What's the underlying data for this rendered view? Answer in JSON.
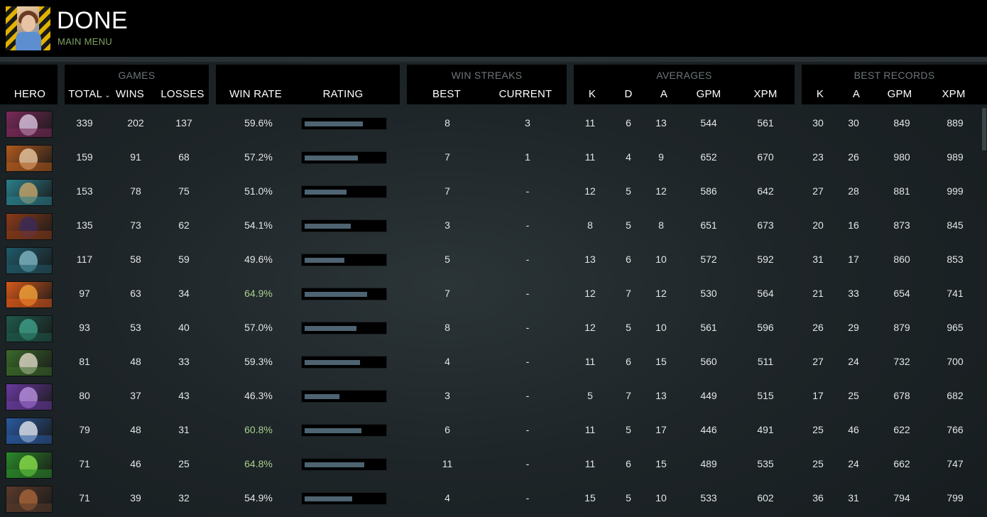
{
  "topbar": {
    "title": "DONE",
    "menu_link": "MAIN MENU"
  },
  "headers": {
    "groups": {
      "games": "GAMES",
      "win_streaks": "WIN STREAKS",
      "averages": "AVERAGES",
      "best_records": "BEST RECORDS"
    },
    "columns": {
      "hero": "HERO",
      "total": "TOTAL",
      "wins": "WINS",
      "losses": "LOSSES",
      "win_rate": "WIN RATE",
      "rating": "RATING",
      "streak_best": "BEST",
      "streak_current": "CURRENT",
      "avg_k": "K",
      "avg_d": "D",
      "avg_a": "A",
      "avg_gpm": "GPM",
      "avg_xpm": "XPM",
      "best_k": "K",
      "best_a": "A",
      "best_gpm": "GPM",
      "best_xpm": "XPM"
    },
    "sort_caret": "⌄"
  },
  "colors": {
    "accent_green": "#a8d08d",
    "menu_green": "#7fa364",
    "bar_fill": "#4e6472"
  },
  "rows": [
    {
      "portrait": [
        "#7a2a5a",
        "#d9c6e0"
      ],
      "total": "339",
      "wins": "202",
      "losses": "137",
      "win_rate": "59.6%",
      "win_rate_highlight": false,
      "rating": 0.74,
      "streak_best": "8",
      "streak_current": "3",
      "avg_k": "11",
      "avg_d": "6",
      "avg_a": "13",
      "avg_gpm": "544",
      "avg_xpm": "561",
      "best_k": "30",
      "best_a": "30",
      "best_gpm": "849",
      "best_xpm": "889"
    },
    {
      "portrait": [
        "#b25a1e",
        "#e7c7a1"
      ],
      "total": "159",
      "wins": "91",
      "losses": "68",
      "win_rate": "57.2%",
      "win_rate_highlight": false,
      "rating": 0.68,
      "streak_best": "7",
      "streak_current": "1",
      "avg_k": "11",
      "avg_d": "4",
      "avg_a": "9",
      "avg_gpm": "652",
      "avg_xpm": "670",
      "best_k": "23",
      "best_a": "26",
      "best_gpm": "980",
      "best_xpm": "989"
    },
    {
      "portrait": [
        "#2a7f8c",
        "#c8a56a"
      ],
      "total": "153",
      "wins": "78",
      "losses": "75",
      "win_rate": "51.0%",
      "win_rate_highlight": false,
      "rating": 0.53,
      "streak_best": "7",
      "streak_current": "-",
      "avg_k": "12",
      "avg_d": "5",
      "avg_a": "12",
      "avg_gpm": "586",
      "avg_xpm": "642",
      "best_k": "27",
      "best_a": "28",
      "best_gpm": "881",
      "best_xpm": "999"
    },
    {
      "portrait": [
        "#8a3a1a",
        "#3a2a5a"
      ],
      "total": "135",
      "wins": "73",
      "losses": "62",
      "win_rate": "54.1%",
      "win_rate_highlight": false,
      "rating": 0.59,
      "streak_best": "3",
      "streak_current": "-",
      "avg_k": "8",
      "avg_d": "5",
      "avg_a": "8",
      "avg_gpm": "651",
      "avg_xpm": "673",
      "best_k": "20",
      "best_a": "16",
      "best_gpm": "873",
      "best_xpm": "845"
    },
    {
      "portrait": [
        "#1f5a6a",
        "#7fb8c4"
      ],
      "total": "117",
      "wins": "58",
      "losses": "59",
      "win_rate": "49.6%",
      "win_rate_highlight": false,
      "rating": 0.5,
      "streak_best": "5",
      "streak_current": "-",
      "avg_k": "13",
      "avg_d": "6",
      "avg_a": "10",
      "avg_gpm": "572",
      "avg_xpm": "592",
      "best_k": "31",
      "best_a": "17",
      "best_gpm": "860",
      "best_xpm": "853"
    },
    {
      "portrait": [
        "#d8581a",
        "#f2a23a"
      ],
      "total": "97",
      "wins": "63",
      "losses": "34",
      "win_rate": "64.9%",
      "win_rate_highlight": true,
      "rating": 0.79,
      "streak_best": "7",
      "streak_current": "-",
      "avg_k": "12",
      "avg_d": "7",
      "avg_a": "12",
      "avg_gpm": "530",
      "avg_xpm": "564",
      "best_k": "21",
      "best_a": "33",
      "best_gpm": "654",
      "best_xpm": "741"
    },
    {
      "portrait": [
        "#1e5a4a",
        "#3fa08a"
      ],
      "total": "93",
      "wins": "53",
      "losses": "40",
      "win_rate": "57.0%",
      "win_rate_highlight": false,
      "rating": 0.66,
      "streak_best": "8",
      "streak_current": "-",
      "avg_k": "12",
      "avg_d": "5",
      "avg_a": "10",
      "avg_gpm": "561",
      "avg_xpm": "596",
      "best_k": "26",
      "best_a": "29",
      "best_gpm": "879",
      "best_xpm": "965"
    },
    {
      "portrait": [
        "#3a6a2a",
        "#e0d8c8"
      ],
      "total": "81",
      "wins": "48",
      "losses": "33",
      "win_rate": "59.3%",
      "win_rate_highlight": false,
      "rating": 0.7,
      "streak_best": "4",
      "streak_current": "-",
      "avg_k": "11",
      "avg_d": "6",
      "avg_a": "15",
      "avg_gpm": "560",
      "avg_xpm": "511",
      "best_k": "27",
      "best_a": "24",
      "best_gpm": "732",
      "best_xpm": "700"
    },
    {
      "portrait": [
        "#6a3aa0",
        "#b890e0"
      ],
      "total": "80",
      "wins": "37",
      "losses": "43",
      "win_rate": "46.3%",
      "win_rate_highlight": false,
      "rating": 0.44,
      "streak_best": "3",
      "streak_current": "-",
      "avg_k": "5",
      "avg_d": "7",
      "avg_a": "13",
      "avg_gpm": "449",
      "avg_xpm": "515",
      "best_k": "17",
      "best_a": "25",
      "best_gpm": "678",
      "best_xpm": "682"
    },
    {
      "portrait": [
        "#2a5aa0",
        "#e0e6f0"
      ],
      "total": "79",
      "wins": "48",
      "losses": "31",
      "win_rate": "60.8%",
      "win_rate_highlight": true,
      "rating": 0.72,
      "streak_best": "6",
      "streak_current": "-",
      "avg_k": "11",
      "avg_d": "5",
      "avg_a": "17",
      "avg_gpm": "446",
      "avg_xpm": "491",
      "best_k": "25",
      "best_a": "46",
      "best_gpm": "622",
      "best_xpm": "766"
    },
    {
      "portrait": [
        "#2a8a2a",
        "#8ae04a"
      ],
      "total": "71",
      "wins": "46",
      "losses": "25",
      "win_rate": "64.8%",
      "win_rate_highlight": true,
      "rating": 0.76,
      "streak_best": "11",
      "streak_current": "-",
      "avg_k": "11",
      "avg_d": "6",
      "avg_a": "15",
      "avg_gpm": "489",
      "avg_xpm": "535",
      "best_k": "25",
      "best_a": "24",
      "best_gpm": "662",
      "best_xpm": "747"
    },
    {
      "portrait": [
        "#5a3a2a",
        "#a8653a"
      ],
      "total": "71",
      "wins": "39",
      "losses": "32",
      "win_rate": "54.9%",
      "win_rate_highlight": false,
      "rating": 0.6,
      "streak_best": "4",
      "streak_current": "-",
      "avg_k": "15",
      "avg_d": "5",
      "avg_a": "10",
      "avg_gpm": "533",
      "avg_xpm": "602",
      "best_k": "36",
      "best_a": "31",
      "best_gpm": "794",
      "best_xpm": "799"
    }
  ]
}
